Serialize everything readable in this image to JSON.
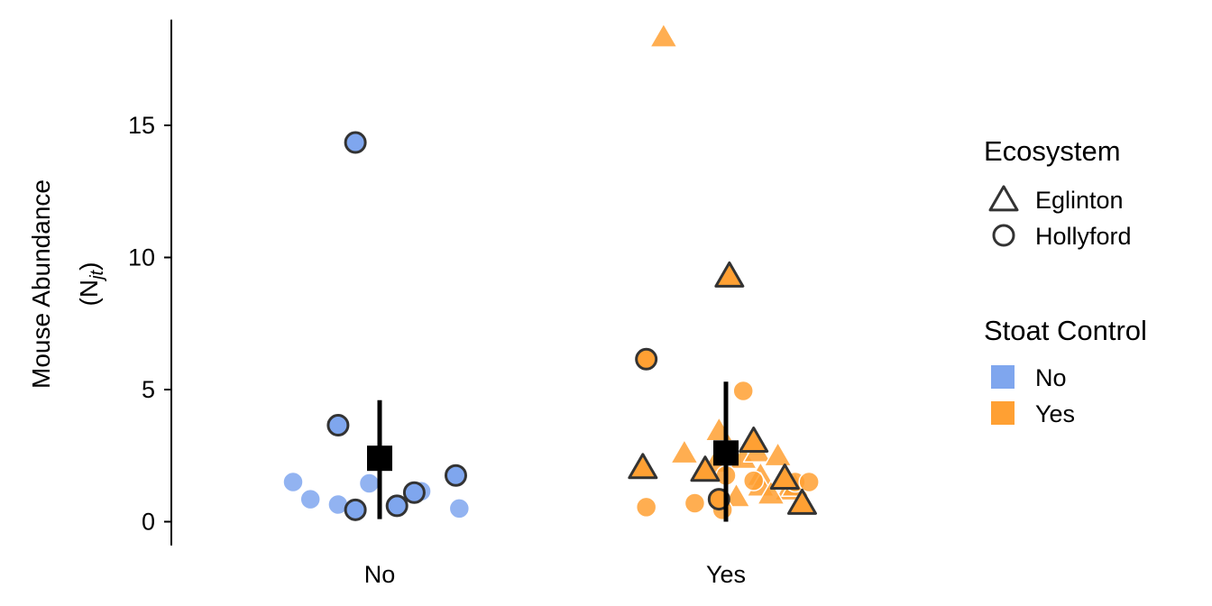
{
  "chart_data": {
    "type": "scatter",
    "title": "",
    "xlabel": "",
    "ylabel": "Mouse   Abundance",
    "ylabel_math": "(N",
    "ylabel_math_sub": "jt",
    "ylabel_math_close": ")",
    "categories": [
      "No",
      "Yes"
    ],
    "ylim": [
      -0.9,
      19.0
    ],
    "yticks": [
      0,
      5,
      10,
      15
    ],
    "grid": false,
    "legend_position": "right",
    "colors": {
      "No": "#7fa6ee",
      "Yes": "#ffa033",
      "outline": "#333333",
      "summary": "#000000"
    },
    "legends": [
      {
        "title": "Ecosystem",
        "entries": [
          {
            "label": "Eglinton",
            "shape": "triangle"
          },
          {
            "label": "Hollyford",
            "shape": "circle"
          }
        ]
      },
      {
        "title": "Stoat Control",
        "entries": [
          {
            "label": "No",
            "color": "#7fa6ee"
          },
          {
            "label": "Yes",
            "color": "#ffa033"
          }
        ]
      }
    ],
    "summary": [
      {
        "category": "No",
        "mean": 2.4,
        "lower": 0.1,
        "upper": 4.6
      },
      {
        "category": "Yes",
        "mean": 2.6,
        "lower": 0.0,
        "upper": 5.3
      }
    ],
    "series": [
      {
        "name": "No",
        "points": [
          {
            "x": -0.07,
            "y": 14.35,
            "shape": "circle",
            "outlined": true
          },
          {
            "x": -0.12,
            "y": 3.65,
            "shape": "circle",
            "outlined": true
          },
          {
            "x": -0.25,
            "y": 1.5,
            "shape": "circle",
            "outlined": false
          },
          {
            "x": -0.2,
            "y": 0.85,
            "shape": "circle",
            "outlined": false
          },
          {
            "x": -0.12,
            "y": 0.65,
            "shape": "circle",
            "outlined": false
          },
          {
            "x": -0.03,
            "y": 1.45,
            "shape": "circle",
            "outlined": false
          },
          {
            "x": -0.07,
            "y": 0.45,
            "shape": "circle",
            "outlined": true
          },
          {
            "x": 0.05,
            "y": 0.6,
            "shape": "circle",
            "outlined": true
          },
          {
            "x": 0.1,
            "y": 1.1,
            "shape": "circle",
            "outlined": true
          },
          {
            "x": 0.12,
            "y": 1.15,
            "shape": "circle",
            "outlined": false
          },
          {
            "x": 0.22,
            "y": 1.75,
            "shape": "circle",
            "outlined": true
          },
          {
            "x": 0.23,
            "y": 0.5,
            "shape": "circle",
            "outlined": false
          }
        ]
      },
      {
        "name": "Yes",
        "points": [
          {
            "x": -0.18,
            "y": 18.3,
            "shape": "triangle",
            "outlined": false
          },
          {
            "x": 0.01,
            "y": 9.25,
            "shape": "triangle",
            "outlined": true
          },
          {
            "x": -0.23,
            "y": 6.15,
            "shape": "circle",
            "outlined": true
          },
          {
            "x": 0.05,
            "y": 4.95,
            "shape": "circle",
            "outlined": false
          },
          {
            "x": -0.24,
            "y": 2.0,
            "shape": "triangle",
            "outlined": true
          },
          {
            "x": -0.12,
            "y": 2.55,
            "shape": "triangle",
            "outlined": false
          },
          {
            "x": -0.06,
            "y": 1.9,
            "shape": "triangle",
            "outlined": true
          },
          {
            "x": -0.03,
            "y": 2.2,
            "shape": "triangle",
            "outlined": false
          },
          {
            "x": -0.02,
            "y": 3.4,
            "shape": "triangle",
            "outlined": false
          },
          {
            "x": 0.05,
            "y": 2.35,
            "shape": "triangle",
            "outlined": false
          },
          {
            "x": 0.08,
            "y": 3.0,
            "shape": "triangle",
            "outlined": true
          },
          {
            "x": 0.09,
            "y": 2.6,
            "shape": "triangle",
            "outlined": false
          },
          {
            "x": 0.15,
            "y": 2.45,
            "shape": "triangle",
            "outlined": false
          },
          {
            "x": 0.1,
            "y": 1.7,
            "shape": "triangle",
            "outlined": false
          },
          {
            "x": 0.1,
            "y": 1.3,
            "shape": "triangle",
            "outlined": false
          },
          {
            "x": 0.17,
            "y": 1.6,
            "shape": "triangle",
            "outlined": true
          },
          {
            "x": 0.18,
            "y": 1.15,
            "shape": "triangle",
            "outlined": false
          },
          {
            "x": 0.2,
            "y": 1.3,
            "shape": "triangle",
            "outlined": false
          },
          {
            "x": 0.22,
            "y": 0.65,
            "shape": "triangle",
            "outlined": true
          },
          {
            "x": 0.03,
            "y": 0.9,
            "shape": "triangle",
            "outlined": false
          },
          {
            "x": 0.13,
            "y": 1.0,
            "shape": "triangle",
            "outlined": false
          },
          {
            "x": -0.23,
            "y": 0.55,
            "shape": "circle",
            "outlined": false
          },
          {
            "x": -0.09,
            "y": 0.7,
            "shape": "circle",
            "outlined": false
          },
          {
            "x": -0.02,
            "y": 0.85,
            "shape": "circle",
            "outlined": true
          },
          {
            "x": -0.01,
            "y": 0.45,
            "shape": "circle",
            "outlined": false
          },
          {
            "x": 0.0,
            "y": 1.75,
            "shape": "circle",
            "outlined": false
          },
          {
            "x": 0.08,
            "y": 1.55,
            "shape": "circle",
            "outlined": false
          },
          {
            "x": 0.2,
            "y": 1.5,
            "shape": "circle",
            "outlined": false
          },
          {
            "x": 0.24,
            "y": 1.5,
            "shape": "circle",
            "outlined": false
          }
        ]
      }
    ]
  }
}
